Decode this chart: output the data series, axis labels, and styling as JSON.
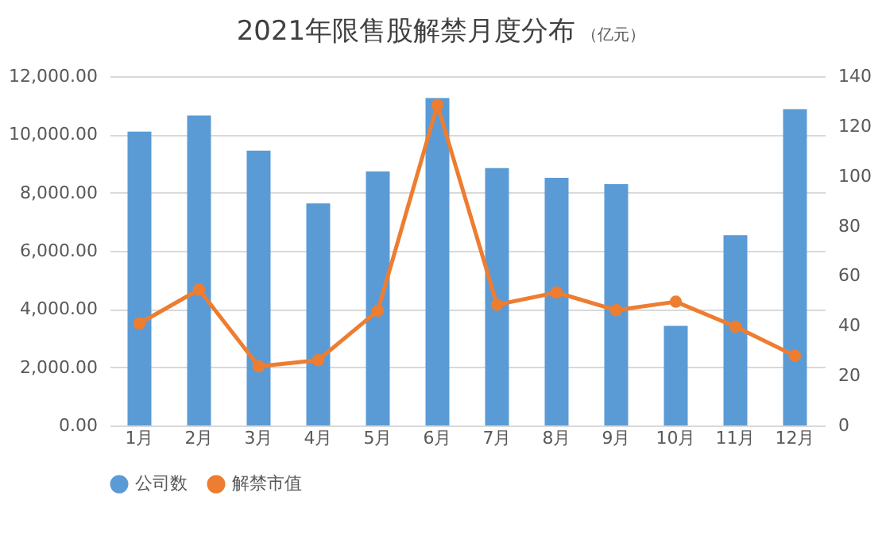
{
  "chart_data": {
    "type": "bar",
    "title": "2021年限售股解禁月度分布",
    "subtitle": "（亿元）",
    "categories": [
      "1月",
      "2月",
      "3月",
      "4月",
      "5月",
      "6月",
      "7月",
      "8月",
      "9月",
      "10月",
      "11月",
      "12月"
    ],
    "series": [
      {
        "name": "公司数",
        "color": "#5b9bd5",
        "values": [
          10100,
          10650,
          9440,
          7630,
          8730,
          11250,
          8840,
          8510,
          8290,
          3420,
          6540,
          10870
        ]
      },
      {
        "name": "解禁市值",
        "type": "line",
        "axis": "y2",
        "color": "#ed7d31",
        "values": [
          40.9,
          54.5,
          23.7,
          26.2,
          46.0,
          128.5,
          48.4,
          53.3,
          46.2,
          49.6,
          39.6,
          27.9
        ]
      }
    ],
    "ylim": [
      0,
      12000
    ],
    "yticks": [
      {
        "value": 0,
        "label": "0.00"
      },
      {
        "value": 2000,
        "label": "2,000.00"
      },
      {
        "value": 4000,
        "label": "4,000.00"
      },
      {
        "value": 6000,
        "label": "6,000.00"
      },
      {
        "value": 8000,
        "label": "8,000.00"
      },
      {
        "value": 10000,
        "label": "10,000.00"
      },
      {
        "value": 12000,
        "label": "12,000.00"
      }
    ],
    "y2lim": [
      0,
      140
    ],
    "y2ticks": [
      0,
      20,
      40,
      60,
      80,
      100,
      120,
      140
    ],
    "grid": "y",
    "legend": "bottom",
    "marker": "circle"
  }
}
